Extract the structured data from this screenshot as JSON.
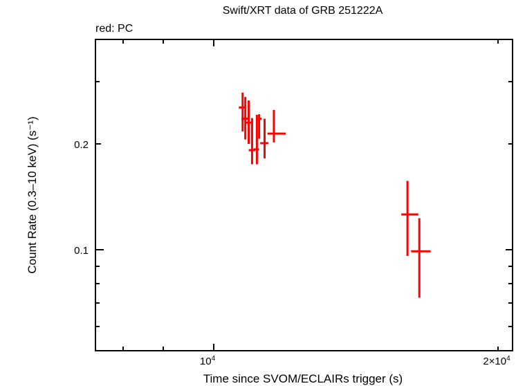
{
  "chart_data": {
    "type": "scatter",
    "title": "Swift/XRT data of GRB 251222A",
    "subtitle": "red: PC",
    "xlabel": "Time since SVOM/ECLAIRs trigger (s)",
    "ylabel": "Count Rate (0.3–10 keV) (s⁻¹)",
    "xscale": "log",
    "yscale": "log",
    "xlim": [
      7500,
      21000
    ],
    "ylim": [
      0.053,
      0.34
    ],
    "x_ticks": [
      {
        "value": 10000,
        "label": "10⁴"
      },
      {
        "value": 20000,
        "label": "2×10⁴"
      }
    ],
    "y_ticks": [
      {
        "value": 0.1,
        "label": "0.1"
      },
      {
        "value": 0.2,
        "label": "0.2"
      }
    ],
    "grid": false,
    "legend": "none",
    "series": [
      {
        "name": "PC",
        "color": "#ff0000",
        "points": [
          {
            "t": 10730,
            "t_lo": 10630,
            "t_hi": 10800,
            "rate": 0.254,
            "rate_lo": 0.217,
            "rate_hi": 0.28
          },
          {
            "t": 10800,
            "t_lo": 10700,
            "t_hi": 10890,
            "rate": 0.236,
            "rate_lo": 0.206,
            "rate_hi": 0.272
          },
          {
            "t": 10890,
            "t_lo": 10800,
            "t_hi": 10970,
            "rate": 0.23,
            "rate_lo": 0.2,
            "rate_hi": 0.266
          },
          {
            "t": 10980,
            "t_lo": 10890,
            "t_hi": 11060,
            "rate": 0.192,
            "rate_lo": 0.175,
            "rate_hi": 0.237
          },
          {
            "t": 11110,
            "t_lo": 11020,
            "t_hi": 11170,
            "rate": 0.193,
            "rate_lo": 0.175,
            "rate_hi": 0.242
          },
          {
            "t": 11170,
            "t_lo": 11100,
            "t_hi": 11240,
            "rate": 0.236,
            "rate_lo": 0.207,
            "rate_hi": 0.243
          },
          {
            "t": 11320,
            "t_lo": 11200,
            "t_hi": 11430,
            "rate": 0.201,
            "rate_lo": 0.182,
            "rate_hi": 0.236
          },
          {
            "t": 11580,
            "t_lo": 11400,
            "t_hi": 11920,
            "rate": 0.214,
            "rate_lo": 0.202,
            "rate_hi": 0.25
          },
          {
            "t": 16040,
            "t_lo": 15800,
            "t_hi": 16470,
            "rate": 0.126,
            "rate_lo": 0.096,
            "rate_hi": 0.157
          },
          {
            "t": 16510,
            "t_lo": 16180,
            "t_hi": 16970,
            "rate": 0.099,
            "rate_lo": 0.073,
            "rate_hi": 0.123
          }
        ]
      }
    ]
  },
  "labels": {
    "title": "Swift/XRT data of GRB 251222A",
    "subtitle": "red: PC",
    "xlabel": "Time since SVOM/ECLAIRs trigger (s)",
    "ylabel": "Count Rate (0.3–10 keV) (s⁻¹)",
    "ytick_02": "0.2",
    "ytick_01": "0.1",
    "xtick_1e4_base": "10",
    "xtick_1e4_exp": "4",
    "xtick_2e4_base": "2×10",
    "xtick_2e4_exp": "4"
  }
}
